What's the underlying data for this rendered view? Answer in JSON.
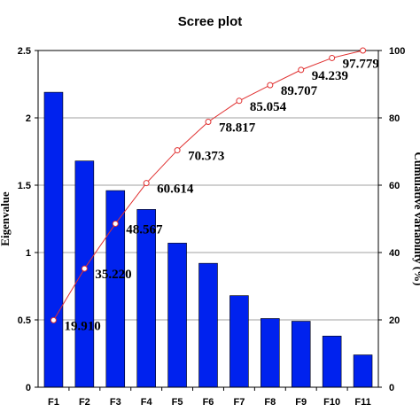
{
  "chart_data": {
    "type": "bar",
    "title": "Scree plot",
    "categories": [
      "F1",
      "F2",
      "F3",
      "F4",
      "F5",
      "F6",
      "F7",
      "F8",
      "F9",
      "F10",
      "F11"
    ],
    "series": [
      {
        "type": "bar",
        "axis": "left",
        "color": "#0022ee",
        "values": [
          2.19,
          1.68,
          1.46,
          1.32,
          1.07,
          0.92,
          0.68,
          0.51,
          0.49,
          0.38,
          0.24
        ]
      },
      {
        "type": "line",
        "axis": "right",
        "color": "#e03030",
        "marker": "open-circle",
        "values": [
          19.91,
          35.22,
          48.567,
          60.614,
          70.373,
          78.817,
          85.054,
          89.707,
          94.239,
          97.779,
          100
        ],
        "labels": [
          "19.910",
          "35.220",
          "48.567",
          "60.614",
          "70.373",
          "78.817",
          "85.054",
          "89.707",
          "94.239",
          "97.779",
          ""
        ]
      }
    ],
    "ylabel": "Eigenvalue",
    "ylim": [
      0,
      2.5
    ],
    "yticks": [
      "0",
      "0.5",
      "1",
      "1.5",
      "2",
      "2.5"
    ],
    "y2label": "Cumulative variability (%)",
    "y2lim": [
      0,
      100
    ],
    "y2ticks": [
      "0",
      "20",
      "40",
      "60",
      "80",
      "100"
    ],
    "grid": true
  }
}
